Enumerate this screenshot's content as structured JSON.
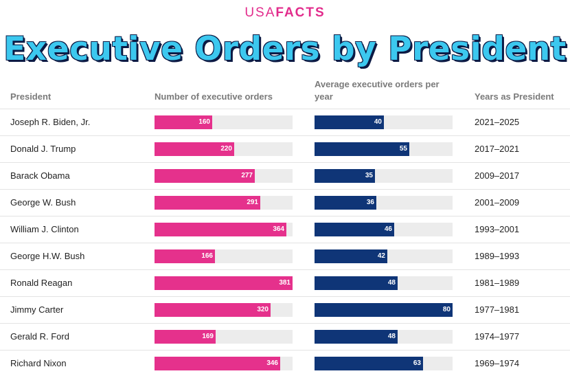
{
  "brand": {
    "usa": "USA",
    "facts": "FACTS"
  },
  "title": "Executive Orders by President",
  "headers": {
    "president": "President",
    "number": "Number of executive orders",
    "average": "Average executive orders per year",
    "years": "Years as President"
  },
  "colors": {
    "number_bar": "#e5318c",
    "average_bar": "#0f3577",
    "track": "#ececec"
  },
  "chart_data": {
    "type": "bar",
    "title": "Executive Orders by President",
    "categories": [
      "Joseph R. Biden, Jr.",
      "Donald J. Trump",
      "Barack Obama",
      "George W. Bush",
      "William J. Clinton",
      "George H.W. Bush",
      "Ronald Reagan",
      "Jimmy Carter",
      "Gerald R. Ford",
      "Richard Nixon"
    ],
    "series": [
      {
        "name": "Number of executive orders",
        "values": [
          160,
          220,
          277,
          291,
          364,
          166,
          381,
          320,
          169,
          346
        ],
        "max": 381
      },
      {
        "name": "Average executive orders per year",
        "values": [
          40,
          55,
          35,
          36,
          46,
          42,
          48,
          80,
          48,
          63
        ],
        "max": 80
      }
    ],
    "years": [
      "2021–2025",
      "2017–2021",
      "2009–2017",
      "2001–2009",
      "1993–2001",
      "1989–1993",
      "1981–1989",
      "1977–1981",
      "1974–1977",
      "1969–1974"
    ]
  }
}
